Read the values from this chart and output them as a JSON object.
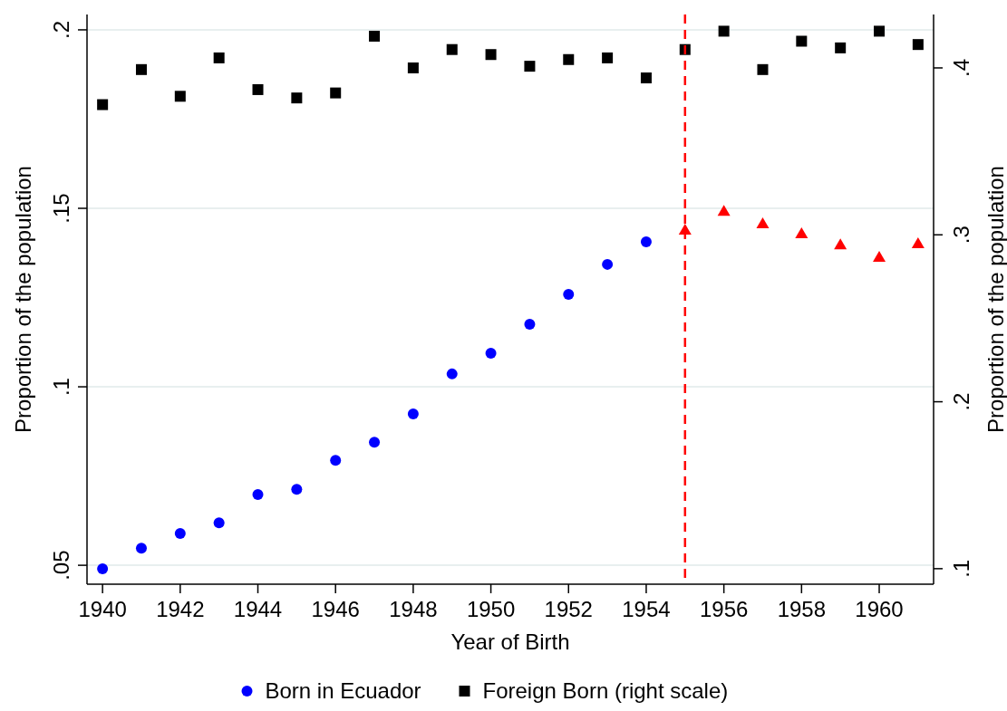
{
  "chart_data": {
    "type": "scatter",
    "xlabel": "Year of Birth",
    "ylabel": "Proportion of the population",
    "y2label": "Proportion of the population",
    "x": [
      1940,
      1941,
      1942,
      1943,
      1944,
      1945,
      1946,
      1947,
      1948,
      1949,
      1950,
      1951,
      1952,
      1953,
      1954,
      1955,
      1956,
      1957,
      1958,
      1959,
      1960,
      1961
    ],
    "series": [
      {
        "name": "Born in Ecuador",
        "color": "#0000ff",
        "marker": "circle",
        "x": [
          1940,
          1941,
          1942,
          1943,
          1944,
          1945,
          1946,
          1947,
          1948,
          1949,
          1950,
          1951,
          1952,
          1953,
          1954
        ],
        "values": [
          0.049,
          0.0548,
          0.0589,
          0.0619,
          0.0698,
          0.0713,
          0.0794,
          0.0845,
          0.0924,
          0.1036,
          0.1094,
          0.1175,
          0.1259,
          0.1343,
          0.1406
        ]
      },
      {
        "color": "#ff0000",
        "marker": "triangle",
        "x": [
          1955,
          1956,
          1957,
          1958,
          1959,
          1960,
          1961
        ],
        "values": [
          0.1439,
          0.1492,
          0.1457,
          0.1429,
          0.1398,
          0.1363,
          0.1401
        ]
      },
      {
        "name": "Foreign Born (right scale)",
        "color": "#000000",
        "marker": "square",
        "axis": "y2",
        "values": [
          0.378,
          0.399,
          0.383,
          0.406,
          0.387,
          0.382,
          0.385,
          0.419,
          0.4,
          0.411,
          0.408,
          0.401,
          0.405,
          0.406,
          0.394,
          0.411,
          0.422,
          0.399,
          0.416,
          0.412,
          0.422,
          0.414
        ]
      }
    ],
    "xlim": [
      1939.6,
      1961.4
    ],
    "xticks": [
      1940,
      1942,
      1944,
      1946,
      1948,
      1950,
      1952,
      1954,
      1956,
      1958,
      1960
    ],
    "ylim": [
      0.0447,
      0.2043
    ],
    "yticks": [
      {
        "value": 0.05,
        "label": ".05"
      },
      {
        "value": 0.1,
        "label": ".1"
      },
      {
        "value": 0.15,
        "label": ".15"
      },
      {
        "value": 0.2,
        "label": ".2"
      }
    ],
    "y2lim": [
      0.0907,
      0.432
    ],
    "y2ticks": [
      {
        "value": 0.1,
        "label": ".1"
      },
      {
        "value": 0.2,
        "label": ".2"
      },
      {
        "value": 0.3,
        "label": ".3"
      },
      {
        "value": 0.4,
        "label": ".4"
      }
    ],
    "ref_lines": [
      {
        "axis": "x",
        "value": 1955,
        "color": "#ff0000",
        "line_style": "dashed"
      }
    ],
    "grid": "y",
    "legend": "bottom"
  }
}
